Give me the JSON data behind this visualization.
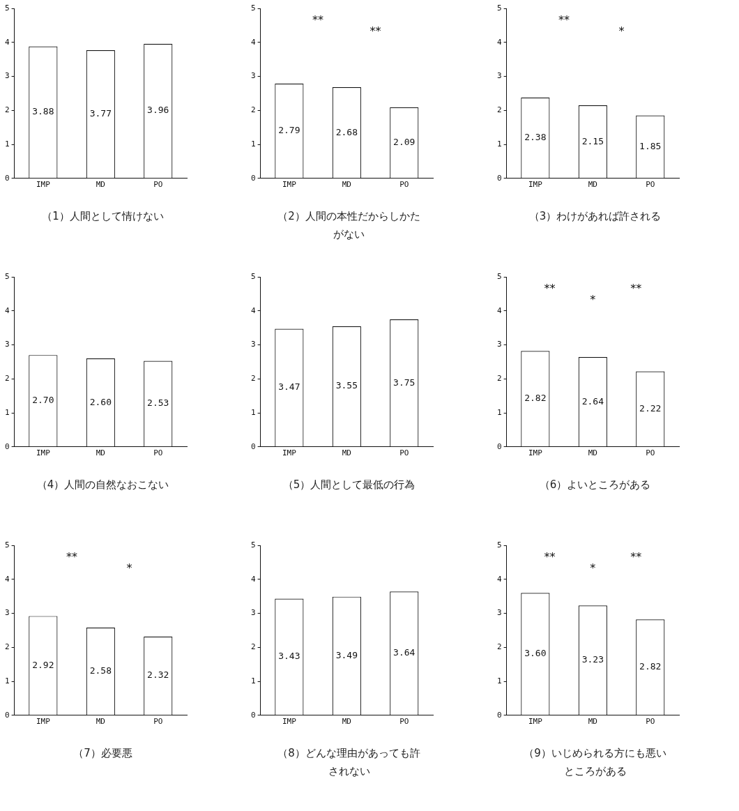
{
  "chart_data": [
    {
      "type": "bar",
      "title": "（1）人間として情けない",
      "categories": [
        "IMP",
        "MD",
        "PO"
      ],
      "values": [
        3.88,
        3.77,
        3.96
      ],
      "value_labels": [
        "3.88",
        "3.77",
        "3.96"
      ],
      "color": "#ffffff",
      "ylim": [
        0,
        5
      ],
      "yticks": [
        0,
        1,
        2,
        3,
        4,
        5
      ],
      "grid": false
    },
    {
      "type": "bar",
      "title": "（2）人間の本性だからしかたがない",
      "categories": [
        "IMP",
        "MD",
        "PO"
      ],
      "values": [
        2.79,
        2.68,
        2.09
      ],
      "value_labels": [
        "2.79",
        "2.68",
        "2.09"
      ],
      "color": "#ffffff",
      "ylim": [
        0,
        5
      ],
      "yticks": [
        0,
        1,
        2,
        3,
        4,
        5
      ],
      "grid": false,
      "annotations": [
        "**",
        "**"
      ]
    },
    {
      "type": "bar",
      "title": "（3）わけがあれば許される",
      "categories": [
        "IMP",
        "MD",
        "PO"
      ],
      "values": [
        2.38,
        2.15,
        1.85
      ],
      "value_labels": [
        "2.38",
        "2.15",
        "1.85"
      ],
      "color": "#ffffff",
      "ylim": [
        0,
        5
      ],
      "yticks": [
        0,
        1,
        2,
        3,
        4,
        5
      ],
      "grid": false,
      "annotations": [
        "**",
        "*"
      ]
    },
    {
      "type": "bar",
      "title": "（4）人間の自然なおこない",
      "categories": [
        "IMP",
        "MD",
        "PO"
      ],
      "values": [
        2.7,
        2.6,
        2.53
      ],
      "value_labels": [
        "2.70",
        "2.60",
        "2.53"
      ],
      "color": "#ffffff",
      "ylim": [
        0,
        5
      ],
      "yticks": [
        0,
        1,
        2,
        3,
        4,
        5
      ],
      "grid": false
    },
    {
      "type": "bar",
      "title": "（5）人間として最低の行為",
      "categories": [
        "IMP",
        "MD",
        "PO"
      ],
      "values": [
        3.47,
        3.55,
        3.75
      ],
      "value_labels": [
        "3.47",
        "3.55",
        "3.75"
      ],
      "color": "#ffffff",
      "ylim": [
        0,
        5
      ],
      "yticks": [
        0,
        1,
        2,
        3,
        4,
        5
      ],
      "grid": false
    },
    {
      "type": "bar",
      "title": "（6）よいところがある",
      "categories": [
        "IMP",
        "MD",
        "PO"
      ],
      "values": [
        2.82,
        2.64,
        2.22
      ],
      "value_labels": [
        "2.82",
        "2.64",
        "2.22"
      ],
      "color": "#ffffff",
      "ylim": [
        0,
        5
      ],
      "yticks": [
        0,
        1,
        2,
        3,
        4,
        5
      ],
      "grid": false,
      "annotations": [
        "**",
        "*",
        "**"
      ]
    },
    {
      "type": "bar",
      "title": "（7）必要悪",
      "categories": [
        "IMP",
        "MD",
        "PO"
      ],
      "values": [
        2.92,
        2.58,
        2.32
      ],
      "value_labels": [
        "2.92",
        "2.58",
        "2.32"
      ],
      "color": "#ffffff",
      "ylim": [
        0,
        5
      ],
      "yticks": [
        0,
        1,
        2,
        3,
        4,
        5
      ],
      "grid": false,
      "annotations": [
        "**",
        "*"
      ]
    },
    {
      "type": "bar",
      "title": "（8）どんな理由があっても許されない",
      "categories": [
        "IMP",
        "MD",
        "PO"
      ],
      "values": [
        3.43,
        3.49,
        3.64
      ],
      "value_labels": [
        "3.43",
        "3.49",
        "3.64"
      ],
      "color": "#ffffff",
      "ylim": [
        0,
        5
      ],
      "yticks": [
        0,
        1,
        2,
        3,
        4,
        5
      ],
      "grid": false
    },
    {
      "type": "bar",
      "title": "（9）いじめられる方にも悪いところがある",
      "categories": [
        "IMP",
        "MD",
        "PO"
      ],
      "values": [
        3.6,
        3.23,
        2.82
      ],
      "value_labels": [
        "3.60",
        "3.23",
        "2.82"
      ],
      "color": "#ffffff",
      "ylim": [
        0,
        5
      ],
      "yticks": [
        0,
        1,
        2,
        3,
        4,
        5
      ],
      "grid": false,
      "annotations": [
        "**",
        "*",
        "**"
      ]
    }
  ]
}
